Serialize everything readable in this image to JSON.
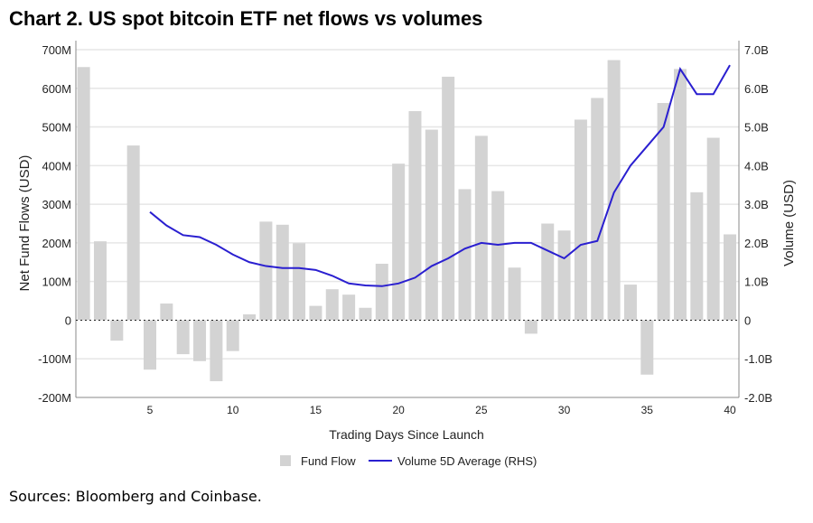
{
  "title": "Chart 2. US spot bitcoin ETF net flows vs volumes",
  "source": "Sources: Bloomberg and Coinbase.",
  "chart_data": {
    "type": "bar",
    "title": "Chart 2. US spot bitcoin ETF net flows vs volumes",
    "xlabel": "Trading Days Since Launch",
    "ylabel": "Net Fund Flows (USD)",
    "y2label": "Volume (USD)",
    "xlim": [
      1,
      40
    ],
    "xticks": [
      5,
      10,
      15,
      20,
      25,
      30,
      35,
      40
    ],
    "ylim": [
      -200,
      700
    ],
    "yticks": [
      "-200M",
      "-100M",
      "0",
      "100M",
      "200M",
      "300M",
      "400M",
      "500M",
      "600M",
      "700M"
    ],
    "y2lim": [
      -2.0,
      7.0
    ],
    "y2ticks": [
      "-2.0B",
      "-1.0B",
      "0",
      "1.0B",
      "2.0B",
      "3.0B",
      "4.0B",
      "5.0B",
      "6.0B",
      "7.0B"
    ],
    "grid": true,
    "legend": "bottom",
    "colors": {
      "bar": "#d3d3d3",
      "line": "#2a1fd0"
    },
    "series": [
      {
        "name": "Fund Flow",
        "type": "bar",
        "unit": "M USD",
        "x": [
          1,
          2,
          3,
          4,
          5,
          6,
          7,
          8,
          9,
          10,
          11,
          12,
          13,
          14,
          15,
          16,
          17,
          18,
          19,
          20,
          21,
          22,
          23,
          24,
          25,
          26,
          27,
          28,
          29,
          30,
          31,
          32,
          33,
          34,
          35,
          36,
          37,
          38,
          39,
          40
        ],
        "values": [
          655,
          204,
          -53,
          452,
          -128,
          43,
          -88,
          -106,
          -158,
          -80,
          15,
          255,
          247,
          199,
          37,
          80,
          66,
          32,
          146,
          405,
          541,
          493,
          630,
          339,
          477,
          334,
          136,
          -35,
          250,
          232,
          519,
          575,
          673,
          92,
          -141,
          562,
          650,
          331,
          472,
          222
        ]
      },
      {
        "name": "Volume 5D Average (RHS)",
        "type": "line",
        "unit": "B USD",
        "x": [
          5,
          6,
          7,
          8,
          9,
          10,
          11,
          12,
          13,
          14,
          15,
          16,
          17,
          18,
          19,
          20,
          21,
          22,
          23,
          24,
          25,
          26,
          27,
          28,
          29,
          30,
          31,
          32,
          33,
          34,
          35,
          36,
          37,
          38,
          39,
          40
        ],
        "values": [
          2.8,
          2.45,
          2.2,
          2.15,
          1.95,
          1.7,
          1.5,
          1.4,
          1.35,
          1.35,
          1.3,
          1.15,
          0.95,
          0.9,
          0.88,
          0.95,
          1.1,
          1.4,
          1.6,
          1.85,
          2.0,
          1.95,
          2.0,
          2.0,
          1.8,
          1.6,
          1.95,
          2.05,
          3.3,
          4.0,
          4.5,
          5.0,
          6.5,
          5.85,
          5.85,
          6.6
        ]
      }
    ]
  }
}
